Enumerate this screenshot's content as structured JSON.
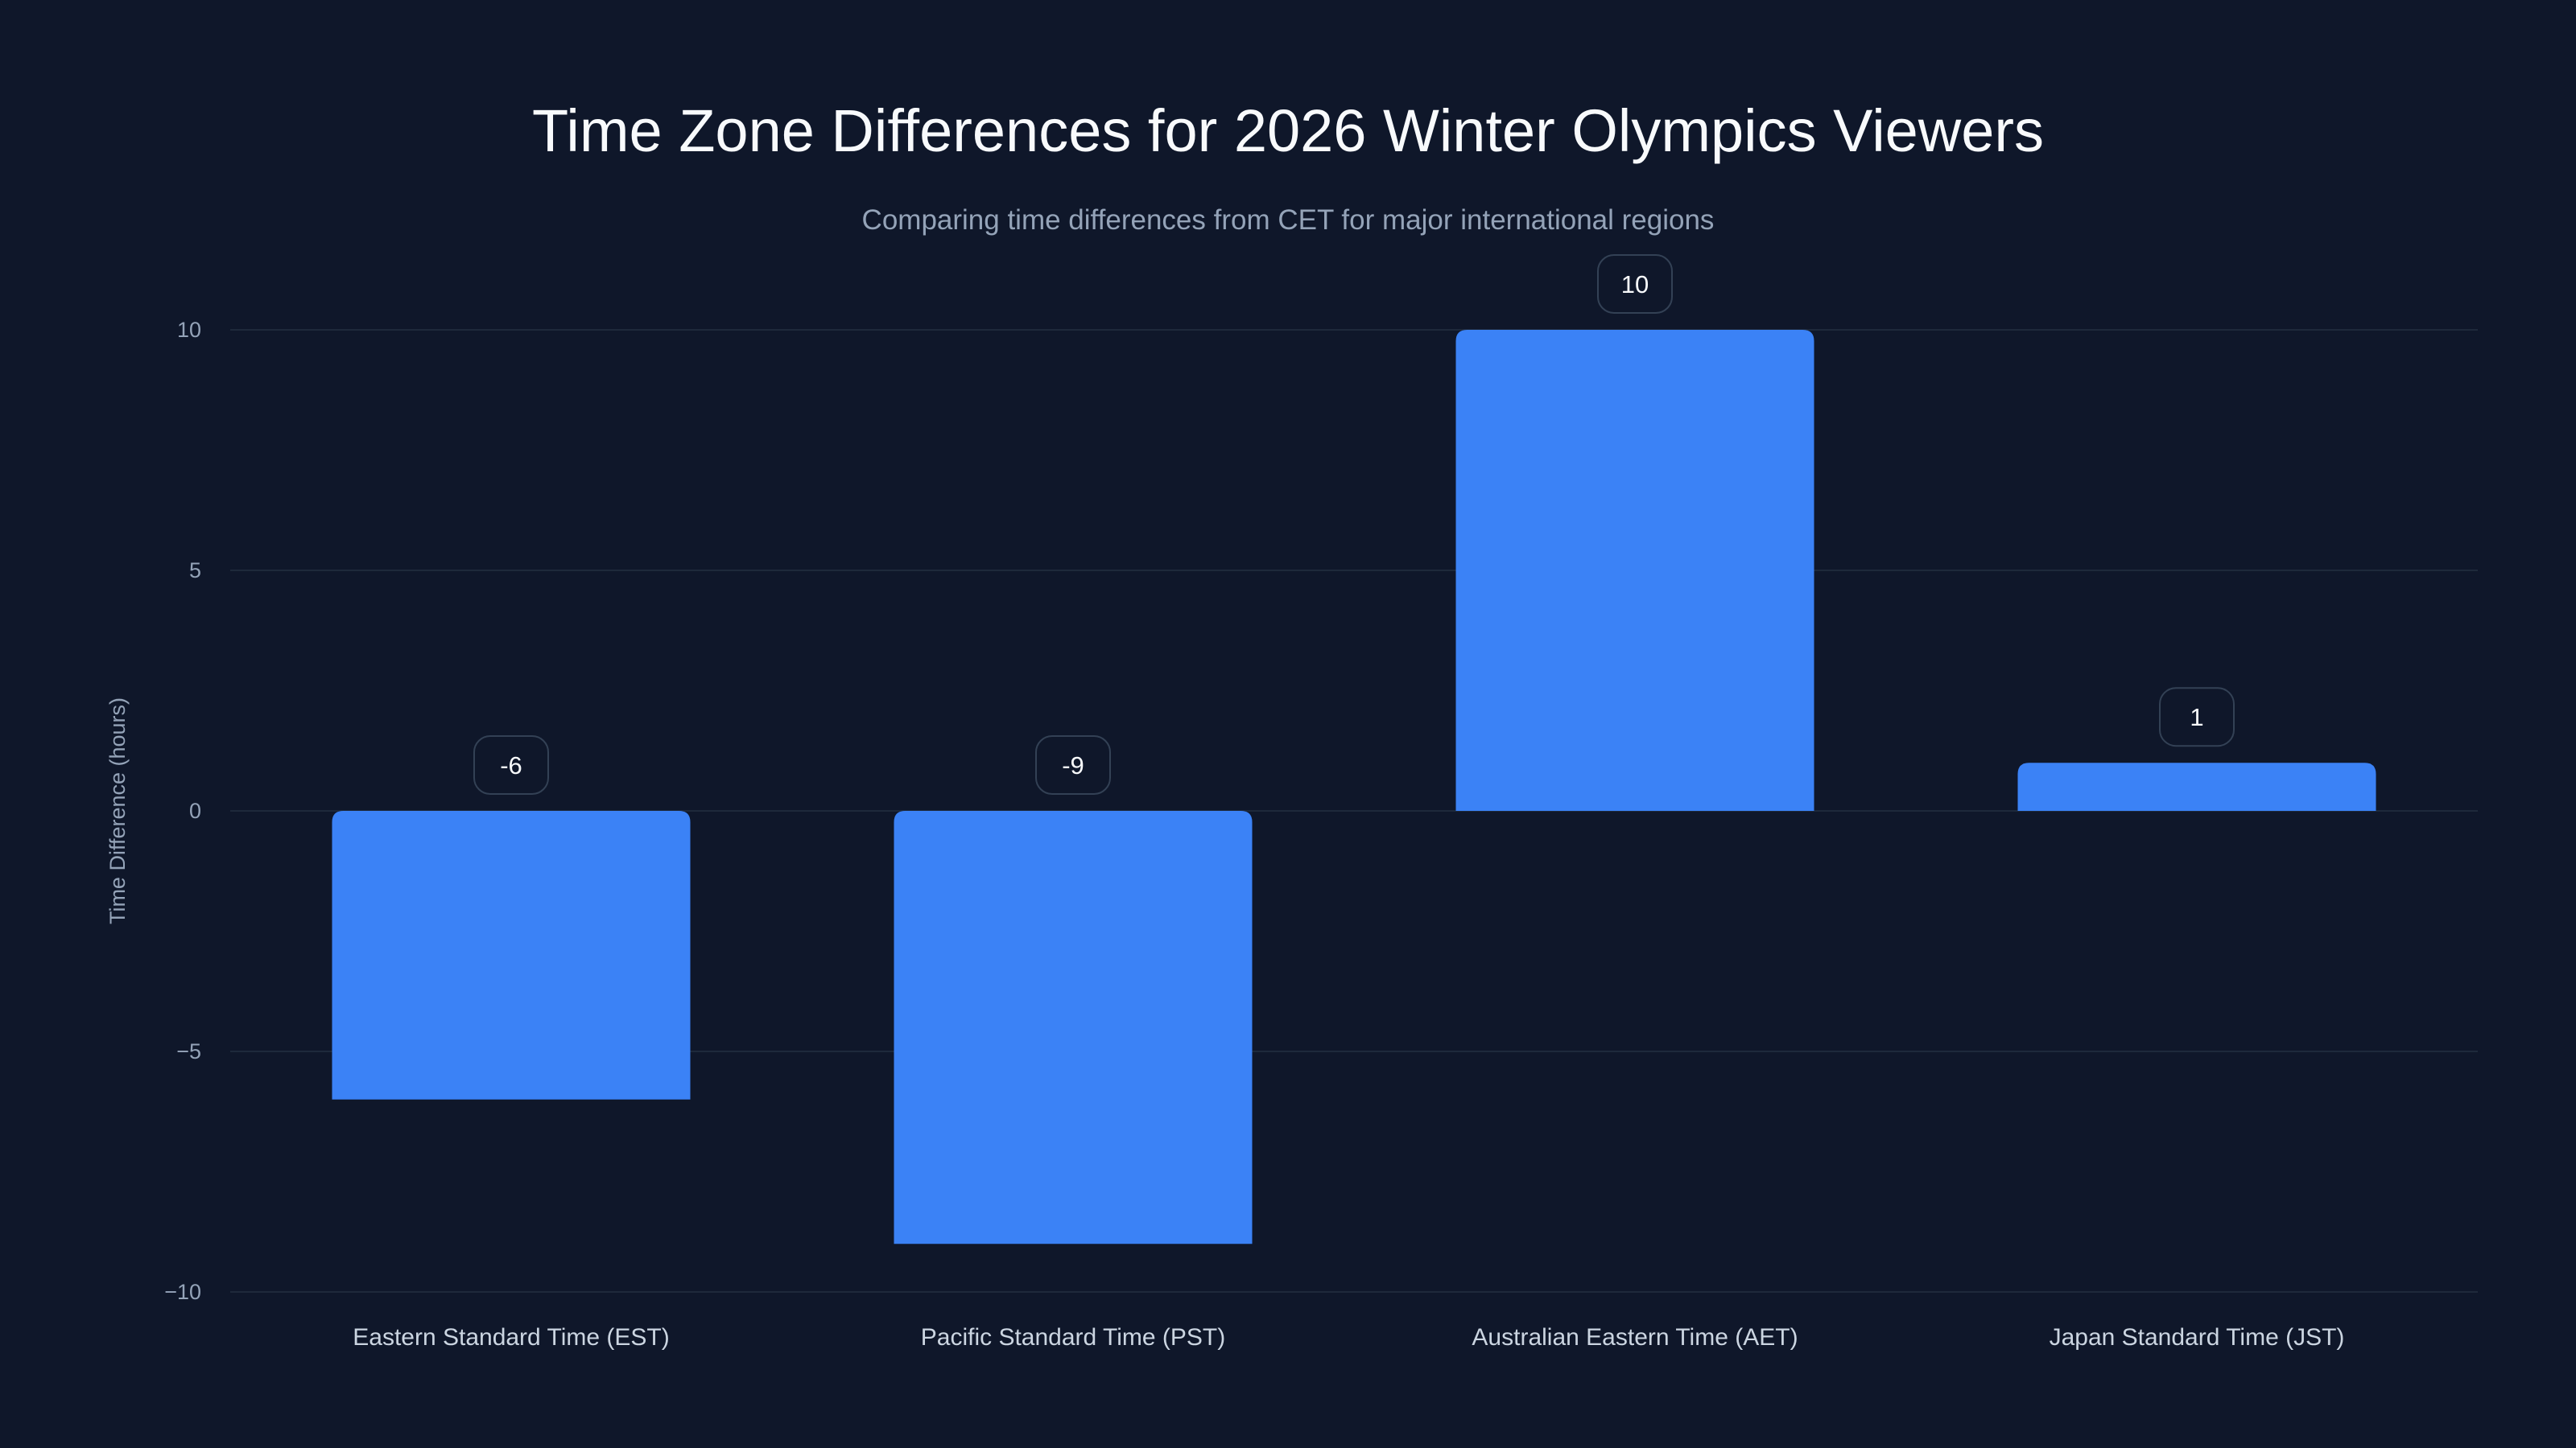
{
  "chart_data": {
    "type": "bar",
    "title": "Time Zone Differences for 2026 Winter Olympics Viewers",
    "subtitle": "Comparing time differences from CET for major international regions",
    "xlabel": "",
    "ylabel": "Time Difference (hours)",
    "categories": [
      "Eastern Standard Time (EST)",
      "Pacific Standard Time (PST)",
      "Australian Eastern Time (AET)",
      "Japan Standard Time (JST)"
    ],
    "values": [
      -6,
      -9,
      10,
      1
    ],
    "data_labels": [
      "-6",
      "-9",
      "10",
      "1"
    ],
    "ylim": [
      -10,
      10
    ],
    "yticks": [
      10,
      5,
      0,
      -5,
      -10
    ],
    "grid": true,
    "legend": "none",
    "colors": {
      "background": "#0f172a",
      "bar": "#3b82f6",
      "grid": "#1e293b",
      "label_border": "#334155"
    }
  }
}
